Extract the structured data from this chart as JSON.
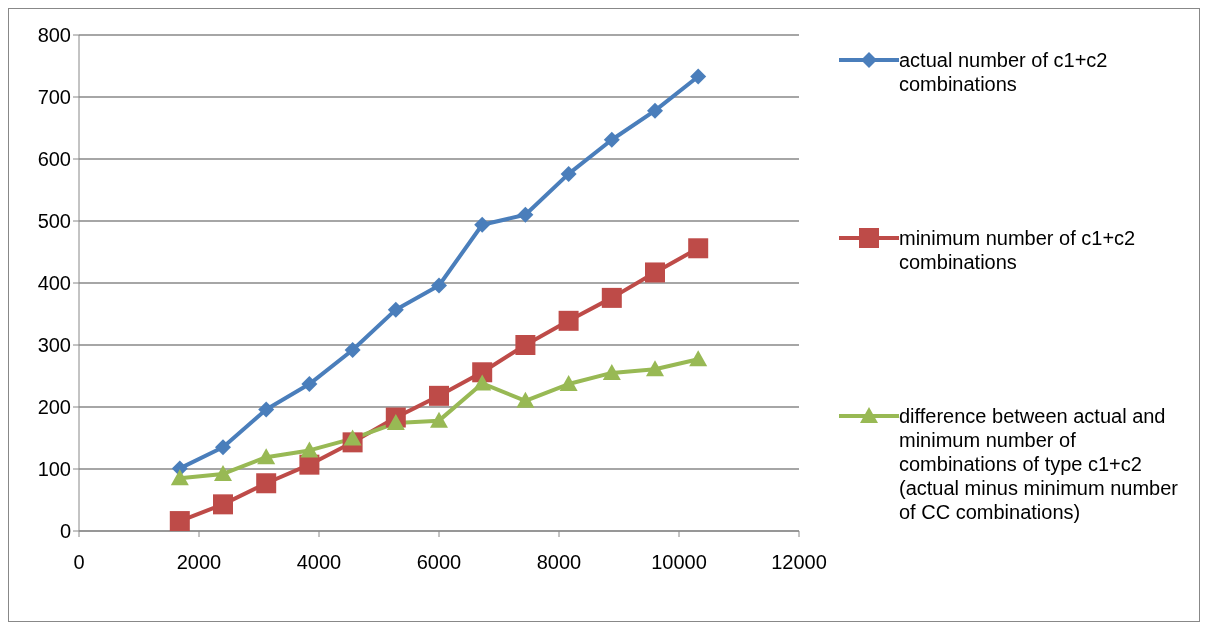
{
  "chart_data": {
    "type": "line",
    "x": [
      1680,
      2400,
      3120,
      3840,
      4560,
      5280,
      6000,
      6720,
      7440,
      8160,
      8880,
      9600,
      10320
    ],
    "series": [
      {
        "name": "actual number of c1+c2 combinations",
        "color": "#4a7ebb",
        "marker": "diamond",
        "values": [
          101,
          135,
          196,
          237,
          292,
          357,
          396,
          494,
          510,
          576,
          631,
          678,
          733
        ]
      },
      {
        "name": "minimum number of c1+c2 combinations",
        "color": "#be4b48",
        "marker": "square",
        "values": [
          16,
          43,
          77,
          107,
          143,
          183,
          218,
          256,
          300,
          339,
          376,
          417,
          456
        ]
      },
      {
        "name": "difference between actual and minimum number of combinations of type c1+c2 (actual minus minimum number of CC combinations)",
        "color": "#98b954",
        "marker": "triangle",
        "values": [
          85,
          92,
          119,
          130,
          149,
          174,
          178,
          238,
          210,
          237,
          255,
          261,
          277
        ]
      }
    ],
    "xlim": [
      0,
      12000
    ],
    "xticks": [
      0,
      2000,
      4000,
      6000,
      8000,
      10000,
      12000
    ],
    "ylim": [
      0,
      800
    ],
    "yticks": [
      0,
      100,
      200,
      300,
      400,
      500,
      600,
      700,
      800
    ],
    "grid": "y",
    "legend": "right",
    "line_style": "solid"
  }
}
